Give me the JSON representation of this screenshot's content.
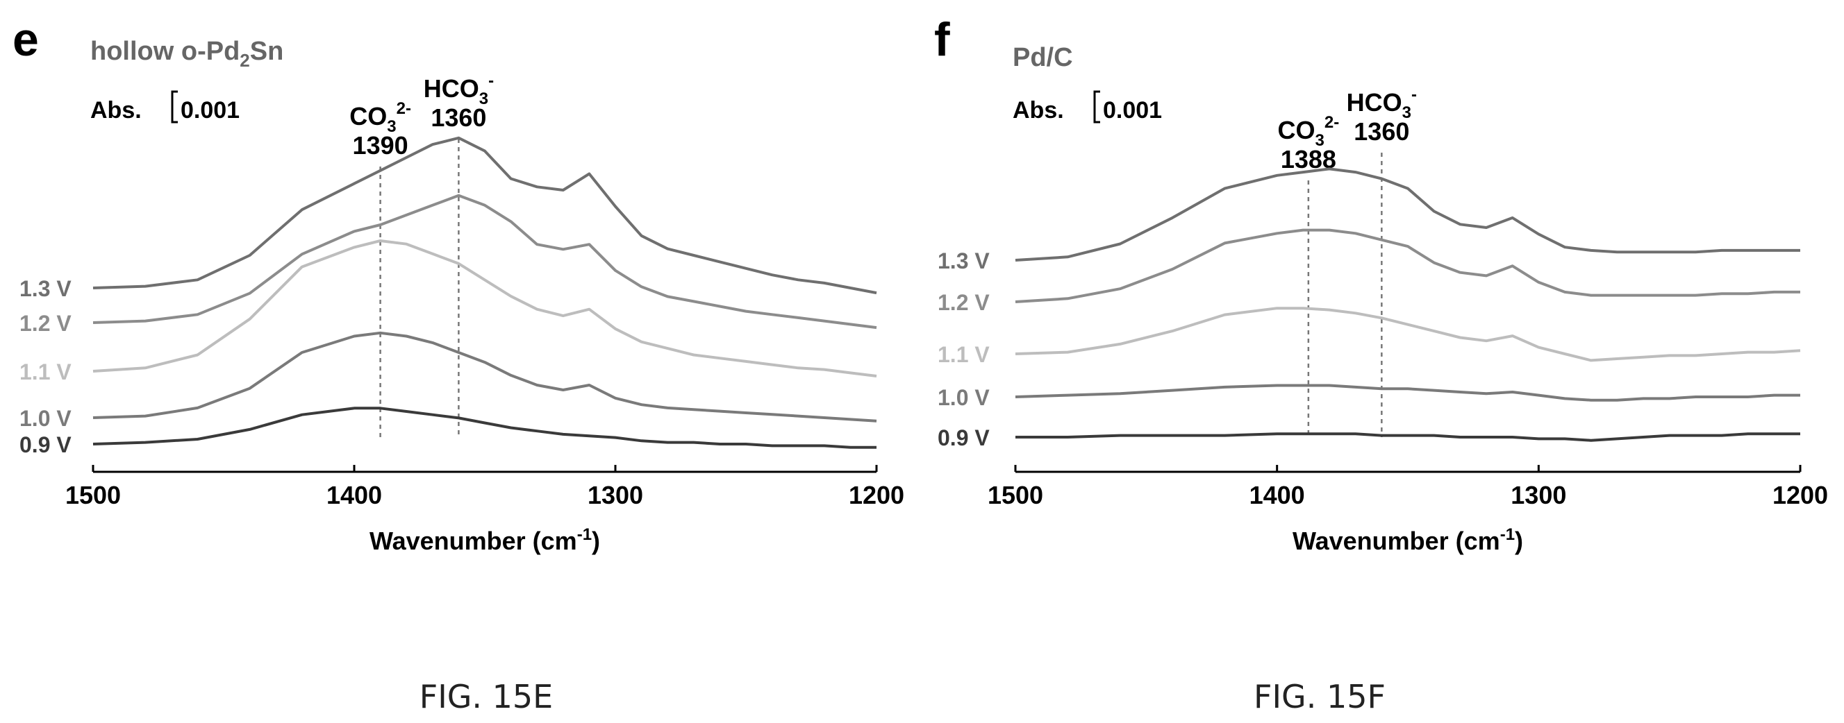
{
  "chart_data": [
    {
      "type": "line",
      "panel": "e",
      "title": "hollow o-Pd2Sn",
      "title_parts": {
        "pre": "hollow o-Pd",
        "sub": "2",
        "post": "Sn"
      },
      "scale_label": {
        "pre": "Abs.",
        "post": "0.001"
      },
      "xlabel": {
        "pre": "Wavenumber (cm",
        "sup": "-1",
        "post": ")"
      },
      "xlim": [
        1500,
        1200
      ],
      "x_ticks": [
        "1500",
        "1400",
        "1300",
        "1200"
      ],
      "ylabel": "",
      "annotations": [
        {
          "x": 1390,
          "species": {
            "base": "CO",
            "sub": "3",
            "sup": "2-",
            "pre": ""
          },
          "value": "1390"
        },
        {
          "x": 1360,
          "species": {
            "base": "HCO",
            "sub": "3",
            "sup": "-",
            "pre": ""
          },
          "value": "1360"
        }
      ],
      "x": [
        1500,
        1480,
        1460,
        1440,
        1420,
        1400,
        1390,
        1380,
        1370,
        1360,
        1350,
        1340,
        1330,
        1320,
        1310,
        1300,
        1290,
        1280,
        1270,
        1260,
        1250,
        1240,
        1230,
        1220,
        1210,
        1200
      ],
      "series": [
        {
          "name": "1.3 V",
          "color": "#6f6f6f",
          "offset": 12,
          "values": [
            0,
            1,
            5,
            20,
            48,
            64,
            72,
            80,
            88,
            92,
            84,
            67,
            62,
            60,
            70,
            50,
            32,
            24,
            20,
            16,
            12,
            8,
            5,
            3,
            0,
            -3
          ]
        },
        {
          "name": "1.2 V",
          "color": "#8c8c8c",
          "offset": 9,
          "values": [
            0,
            1,
            5,
            18,
            42,
            56,
            60,
            66,
            72,
            78,
            72,
            62,
            48,
            45,
            48,
            32,
            22,
            16,
            13,
            10,
            7,
            5,
            3,
            1,
            -1,
            -3
          ]
        },
        {
          "name": "1.1 V",
          "color": "#bdbdbd",
          "offset": 6,
          "values": [
            0,
            2,
            10,
            32,
            64,
            76,
            80,
            78,
            72,
            66,
            56,
            46,
            38,
            34,
            38,
            26,
            18,
            14,
            10,
            8,
            6,
            4,
            2,
            1,
            -1,
            -3
          ]
        },
        {
          "name": "1.0 V",
          "color": "#7a7a7a",
          "offset": 3,
          "values": [
            0,
            1,
            6,
            18,
            40,
            50,
            52,
            50,
            46,
            40,
            34,
            26,
            20,
            17,
            20,
            12,
            8,
            6,
            5,
            4,
            3,
            2,
            1,
            0,
            -1,
            -2
          ]
        },
        {
          "name": "0.9 V",
          "color": "#3a3a3a",
          "offset": 0,
          "values": [
            0,
            1,
            3,
            9,
            18,
            22,
            22,
            20,
            18,
            16,
            13,
            10,
            8,
            6,
            5,
            4,
            2,
            1,
            1,
            0,
            0,
            -1,
            -1,
            -1,
            -2,
            -2
          ]
        }
      ]
    },
    {
      "type": "line",
      "panel": "f",
      "title": "Pd/C",
      "title_parts": {
        "pre": "Pd/C",
        "sub": "",
        "post": ""
      },
      "scale_label": {
        "pre": "Abs.",
        "post": "0.001"
      },
      "xlabel": {
        "pre": "Wavenumber (cm",
        "sup": "-1",
        "post": ")"
      },
      "xlim": [
        1500,
        1200
      ],
      "x_ticks": [
        "1500",
        "1400",
        "1300",
        "1200"
      ],
      "ylabel": "",
      "annotations": [
        {
          "x": 1388,
          "species": {
            "base": "CO",
            "sub": "3",
            "sup": "2-",
            "pre": ""
          },
          "value": "1388"
        },
        {
          "x": 1360,
          "species": {
            "base": "HCO",
            "sub": "3",
            "sup": "-",
            "pre": ""
          },
          "value": "1360"
        }
      ],
      "x": [
        1500,
        1480,
        1460,
        1440,
        1420,
        1400,
        1390,
        1380,
        1370,
        1360,
        1350,
        1340,
        1330,
        1320,
        1310,
        1300,
        1290,
        1280,
        1270,
        1260,
        1250,
        1240,
        1230,
        1220,
        1210,
        1200
      ],
      "series": [
        {
          "name": "1.3 V",
          "color": "#6f6f6f",
          "offset": 12,
          "values": [
            0,
            2,
            10,
            26,
            44,
            52,
            54,
            56,
            54,
            50,
            44,
            30,
            22,
            20,
            26,
            16,
            8,
            6,
            5,
            5,
            5,
            5,
            6,
            6,
            6,
            6
          ]
        },
        {
          "name": "1.2 V",
          "color": "#8c8c8c",
          "offset": 9,
          "values": [
            0,
            2,
            8,
            20,
            36,
            42,
            44,
            44,
            42,
            38,
            34,
            24,
            18,
            16,
            22,
            12,
            6,
            4,
            4,
            4,
            4,
            4,
            5,
            5,
            6,
            6
          ]
        },
        {
          "name": "1.1 V",
          "color": "#bdbdbd",
          "offset": 6,
          "values": [
            0,
            1,
            6,
            14,
            24,
            28,
            28,
            27,
            25,
            22,
            18,
            14,
            10,
            8,
            11,
            4,
            0,
            -4,
            -3,
            -2,
            -1,
            -1,
            0,
            1,
            1,
            2
          ]
        },
        {
          "name": "1.0 V",
          "color": "#7a7a7a",
          "offset": 3,
          "values": [
            0,
            1,
            2,
            4,
            6,
            7,
            7,
            7,
            6,
            5,
            5,
            4,
            3,
            2,
            3,
            1,
            -1,
            -2,
            -2,
            -1,
            -1,
            0,
            0,
            0,
            1,
            1
          ]
        },
        {
          "name": "0.9 V",
          "color": "#3a3a3a",
          "offset": 0,
          "values": [
            0,
            0,
            1,
            1,
            1,
            2,
            2,
            2,
            2,
            1,
            1,
            1,
            0,
            0,
            0,
            -1,
            -1,
            -2,
            -1,
            0,
            1,
            1,
            1,
            2,
            2,
            2
          ]
        }
      ]
    }
  ],
  "captions": [
    "FIG. 15E",
    "FIG. 15F"
  ]
}
